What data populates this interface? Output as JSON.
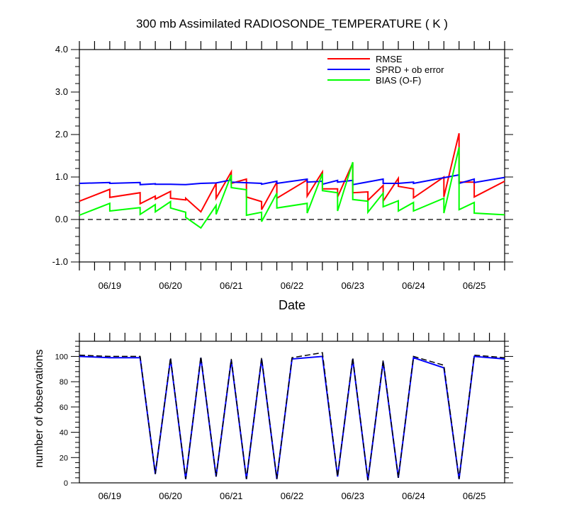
{
  "chart_data": [
    {
      "type": "line",
      "title": "300 mb Assimilated RADIOSONDE_TEMPERATURE ( K )",
      "xlabel": "Date",
      "ylabel": "",
      "ylim": [
        -1.0,
        4.0
      ],
      "xlim": [
        0,
        7
      ],
      "yticks": [
        -1.0,
        0.0,
        1.0,
        2.0,
        3.0,
        4.0
      ],
      "yticks_labels": [
        "-1.0",
        "0.0",
        "1.0",
        "2.0",
        "3.0",
        "4.0"
      ],
      "xticks": [
        {
          "pos": 0.5,
          "label": "06/19"
        },
        {
          "pos": 1.5,
          "label": "06/20"
        },
        {
          "pos": 2.5,
          "label": "06/21"
        },
        {
          "pos": 3.5,
          "label": "06/22"
        },
        {
          "pos": 4.5,
          "label": "06/23"
        },
        {
          "pos": 5.5,
          "label": "06/24"
        },
        {
          "pos": 6.5,
          "label": "06/25"
        }
      ],
      "zero_line": true,
      "legend_position": "top-right",
      "colors": {
        "rmse": "#ff0000",
        "sprd": "#0000ff",
        "bias": "#00ff00"
      },
      "series": [
        {
          "name": "RMSE",
          "color": "#ff0000",
          "points": [
            [
              0,
              0.43
            ],
            [
              0.5,
              0.71
            ],
            [
              0.5,
              0.52
            ],
            [
              1.0,
              0.63
            ],
            [
              1.0,
              0.37
            ],
            [
              1.25,
              0.55
            ],
            [
              1.25,
              0.48
            ],
            [
              1.5,
              0.66
            ],
            [
              1.5,
              0.5
            ],
            [
              1.75,
              0.46
            ],
            [
              1.75,
              0.47
            ],
            [
              1.75,
              0.5
            ],
            [
              2.0,
              0.18
            ],
            [
              2.25,
              0.85
            ],
            [
              2.25,
              0.5
            ],
            [
              2.5,
              1.12
            ],
            [
              2.5,
              0.85
            ],
            [
              2.75,
              0.95
            ],
            [
              2.75,
              0.53
            ],
            [
              3.0,
              0.42
            ],
            [
              3.0,
              0.23
            ],
            [
              3.25,
              0.88
            ],
            [
              3.25,
              0.5
            ],
            [
              3.75,
              0.93
            ],
            [
              3.75,
              0.55
            ],
            [
              4.0,
              1.12
            ],
            [
              4.0,
              0.72
            ],
            [
              4.25,
              0.72
            ],
            [
              4.25,
              0.53
            ],
            [
              4.5,
              1.33
            ],
            [
              4.5,
              0.63
            ],
            [
              4.75,
              0.65
            ],
            [
              4.75,
              0.45
            ],
            [
              5.0,
              0.8
            ],
            [
              5.0,
              0.43
            ],
            [
              5.25,
              0.97
            ],
            [
              5.25,
              0.78
            ],
            [
              5.5,
              0.72
            ],
            [
              5.5,
              0.51
            ],
            [
              6.0,
              1.0
            ],
            [
              6.0,
              0.53
            ],
            [
              6.25,
              2.03
            ],
            [
              6.25,
              0.88
            ],
            [
              6.5,
              0.88
            ],
            [
              6.5,
              0.53
            ],
            [
              7.0,
              0.9
            ]
          ]
        },
        {
          "name": "SPRD + ob error",
          "color": "#0000ff",
          "points": [
            [
              0,
              0.85
            ],
            [
              0.5,
              0.87
            ],
            [
              0.5,
              0.85
            ],
            [
              1.0,
              0.87
            ],
            [
              1.0,
              0.82
            ],
            [
              1.25,
              0.84
            ],
            [
              1.25,
              0.83
            ],
            [
              1.5,
              0.83
            ],
            [
              1.5,
              0.83
            ],
            [
              1.75,
              0.82
            ],
            [
              2.0,
              0.85
            ],
            [
              2.25,
              0.86
            ],
            [
              2.5,
              0.93
            ],
            [
              2.5,
              0.88
            ],
            [
              3.0,
              0.85
            ],
            [
              3.0,
              0.83
            ],
            [
              3.25,
              0.9
            ],
            [
              3.25,
              0.85
            ],
            [
              3.75,
              0.95
            ],
            [
              3.75,
              0.88
            ],
            [
              4.0,
              0.9
            ],
            [
              4.0,
              0.83
            ],
            [
              4.25,
              0.92
            ],
            [
              4.25,
              0.88
            ],
            [
              4.5,
              0.92
            ],
            [
              4.5,
              0.82
            ],
            [
              5.0,
              0.95
            ],
            [
              5.0,
              0.85
            ],
            [
              5.25,
              0.85
            ],
            [
              5.5,
              0.88
            ],
            [
              5.5,
              0.85
            ],
            [
              6.25,
              1.05
            ],
            [
              6.25,
              0.85
            ],
            [
              6.5,
              0.95
            ],
            [
              6.5,
              0.87
            ],
            [
              7.0,
              0.99
            ]
          ]
        },
        {
          "name": "BIAS (O-F)",
          "color": "#00ff00",
          "points": [
            [
              0,
              0.1
            ],
            [
              0.5,
              0.38
            ],
            [
              0.5,
              0.2
            ],
            [
              1.0,
              0.28
            ],
            [
              1.0,
              0.12
            ],
            [
              1.25,
              0.35
            ],
            [
              1.25,
              0.18
            ],
            [
              1.5,
              0.42
            ],
            [
              1.5,
              0.27
            ],
            [
              1.75,
              0.17
            ],
            [
              1.75,
              0.17
            ],
            [
              1.75,
              0.05
            ],
            [
              2.0,
              -0.2
            ],
            [
              2.25,
              0.33
            ],
            [
              2.25,
              0.12
            ],
            [
              2.5,
              1.05
            ],
            [
              2.5,
              0.75
            ],
            [
              2.75,
              0.7
            ],
            [
              2.75,
              0.1
            ],
            [
              3.0,
              0.17
            ],
            [
              3.0,
              -0.05
            ],
            [
              3.25,
              0.62
            ],
            [
              3.25,
              0.27
            ],
            [
              3.75,
              0.38
            ],
            [
              3.75,
              0.15
            ],
            [
              4.0,
              1.08
            ],
            [
              4.0,
              0.68
            ],
            [
              4.25,
              0.63
            ],
            [
              4.25,
              0.2
            ],
            [
              4.5,
              1.35
            ],
            [
              4.5,
              0.47
            ],
            [
              4.75,
              0.43
            ],
            [
              4.75,
              0.17
            ],
            [
              5.0,
              0.62
            ],
            [
              5.0,
              0.3
            ],
            [
              5.25,
              0.44
            ],
            [
              5.25,
              0.2
            ],
            [
              5.5,
              0.4
            ],
            [
              5.5,
              0.2
            ],
            [
              6.0,
              0.5
            ],
            [
              6.0,
              0.15
            ],
            [
              6.25,
              1.7
            ],
            [
              6.25,
              0.23
            ],
            [
              6.5,
              0.4
            ],
            [
              6.5,
              0.15
            ],
            [
              7.0,
              0.11
            ]
          ]
        }
      ]
    },
    {
      "type": "line",
      "title": "",
      "xlabel": "",
      "ylabel": "number of observations",
      "ylim": [
        0,
        112
      ],
      "xlim": [
        0,
        7
      ],
      "yticks": [
        0,
        20,
        40,
        60,
        80,
        100
      ],
      "yticks_labels": [
        "0",
        "20",
        "40",
        "60",
        "80",
        "100"
      ],
      "xticks": [
        {
          "pos": 0.5,
          "label": "06/19"
        },
        {
          "pos": 1.5,
          "label": "06/20"
        },
        {
          "pos": 2.5,
          "label": "06/21"
        },
        {
          "pos": 3.5,
          "label": "06/22"
        },
        {
          "pos": 4.5,
          "label": "06/23"
        },
        {
          "pos": 5.5,
          "label": "06/24"
        },
        {
          "pos": 6.5,
          "label": "06/25"
        }
      ],
      "series": [
        {
          "name": "",
          "color": "#0000ff",
          "dashed": false,
          "points": [
            [
              0,
              100
            ],
            [
              0.5,
              99
            ],
            [
              1.0,
              99
            ],
            [
              1.25,
              7
            ],
            [
              1.5,
              98
            ],
            [
              1.75,
              3
            ],
            [
              2.0,
              99
            ],
            [
              2.25,
              5
            ],
            [
              2.5,
              97
            ],
            [
              2.75,
              3
            ],
            [
              3.0,
              98
            ],
            [
              3.25,
              3
            ],
            [
              3.5,
              98
            ],
            [
              4.0,
              100
            ],
            [
              4.25,
              5
            ],
            [
              4.5,
              98
            ],
            [
              4.75,
              2
            ],
            [
              5.0,
              96
            ],
            [
              5.25,
              4
            ],
            [
              5.5,
              99
            ],
            [
              6.0,
              91
            ],
            [
              6.25,
              3
            ],
            [
              6.5,
              100
            ],
            [
              7.0,
              98
            ]
          ]
        },
        {
          "name": "",
          "color": "#000000",
          "dashed": true,
          "points": [
            [
              0,
              101
            ],
            [
              0.5,
              100
            ],
            [
              1.0,
              100
            ],
            [
              1.25,
              7
            ],
            [
              1.5,
              99
            ],
            [
              1.75,
              3
            ],
            [
              2.0,
              100
            ],
            [
              2.25,
              5
            ],
            [
              2.5,
              98
            ],
            [
              2.75,
              3
            ],
            [
              3.0,
              99
            ],
            [
              3.25,
              3
            ],
            [
              3.5,
              99
            ],
            [
              4.0,
              103
            ],
            [
              4.25,
              5
            ],
            [
              4.5,
              99
            ],
            [
              4.75,
              2
            ],
            [
              5.0,
              97
            ],
            [
              5.25,
              4
            ],
            [
              5.5,
              100
            ],
            [
              6.0,
              93
            ],
            [
              6.25,
              3
            ],
            [
              6.5,
              101
            ],
            [
              7.0,
              99
            ]
          ]
        }
      ]
    }
  ]
}
